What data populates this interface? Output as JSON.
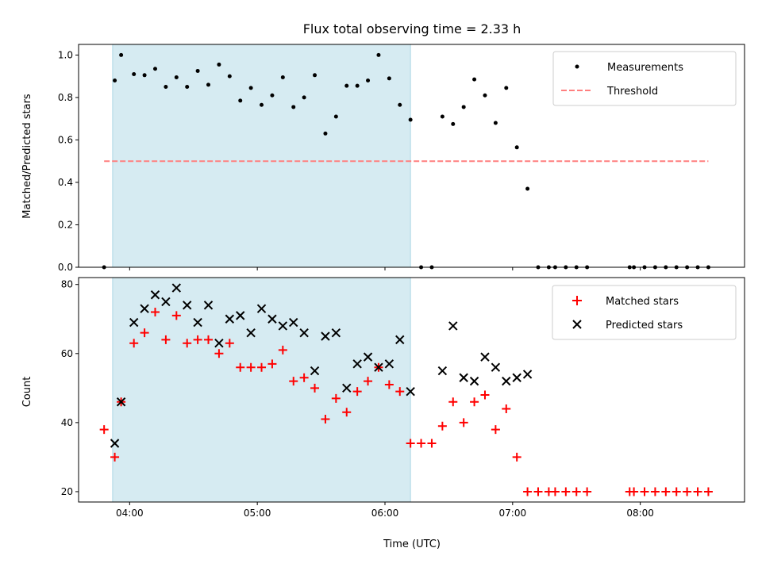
{
  "chart_data": {
    "type": "scatter",
    "title": "Flux total observing time = 2.33 h",
    "xlabel": "Time (UTC)",
    "x_ticks": [
      "04:00",
      "05:00",
      "06:00",
      "07:00",
      "08:00"
    ],
    "x_range": [
      "03:36",
      "08:49"
    ],
    "shaded_interval": [
      "03:52",
      "06:12"
    ],
    "colors": {
      "shade": "#add8e6",
      "measurements": "#000000",
      "threshold": "#ff7f7f",
      "matched": "#ff0000",
      "predicted": "#000000"
    },
    "panels": [
      {
        "id": "ratio",
        "ylabel": "Matched/Predicted stars",
        "ylim": [
          0,
          1.05
        ],
        "y_ticks": [
          "0.0",
          "0.2",
          "0.4",
          "0.6",
          "0.8",
          "1.0"
        ],
        "legend_position": "upper right",
        "series": [
          {
            "name": "Measurements",
            "marker": "dot",
            "points": [
              [
                "03:48",
                0.0
              ],
              [
                "03:53",
                0.88
              ],
              [
                "03:56",
                1.0
              ],
              [
                "04:02",
                0.91
              ],
              [
                "04:07",
                0.905
              ],
              [
                "04:12",
                0.935
              ],
              [
                "04:17",
                0.85
              ],
              [
                "04:22",
                0.895
              ],
              [
                "04:27",
                0.85
              ],
              [
                "04:32",
                0.925
              ],
              [
                "04:37",
                0.86
              ],
              [
                "04:42",
                0.955
              ],
              [
                "04:47",
                0.9
              ],
              [
                "04:52",
                0.785
              ],
              [
                "04:57",
                0.845
              ],
              [
                "05:02",
                0.765
              ],
              [
                "05:07",
                0.81
              ],
              [
                "05:12",
                0.895
              ],
              [
                "05:17",
                0.755
              ],
              [
                "05:22",
                0.8
              ],
              [
                "05:27",
                0.905
              ],
              [
                "05:32",
                0.63
              ],
              [
                "05:37",
                0.71
              ],
              [
                "05:42",
                0.855
              ],
              [
                "05:47",
                0.855
              ],
              [
                "05:52",
                0.88
              ],
              [
                "05:57",
                1.0
              ],
              [
                "06:02",
                0.89
              ],
              [
                "06:07",
                0.765
              ],
              [
                "06:12",
                0.695
              ],
              [
                "06:17",
                0.0
              ],
              [
                "06:22",
                0.0
              ],
              [
                "06:27",
                0.71
              ],
              [
                "06:32",
                0.675
              ],
              [
                "06:37",
                0.755
              ],
              [
                "06:42",
                0.885
              ],
              [
                "06:47",
                0.81
              ],
              [
                "06:52",
                0.68
              ],
              [
                "06:57",
                0.845
              ],
              [
                "07:02",
                0.565
              ],
              [
                "07:07",
                0.37
              ],
              [
                "07:12",
                0.0
              ],
              [
                "07:17",
                0.0
              ],
              [
                "07:20",
                0.0
              ],
              [
                "07:25",
                0.0
              ],
              [
                "07:30",
                0.0
              ],
              [
                "07:35",
                0.0
              ],
              [
                "07:55",
                0.0
              ],
              [
                "07:57",
                0.0
              ],
              [
                "08:02",
                0.0
              ],
              [
                "08:07",
                0.0
              ],
              [
                "08:12",
                0.0
              ],
              [
                "08:17",
                0.0
              ],
              [
                "08:22",
                0.0
              ],
              [
                "08:27",
                0.0
              ],
              [
                "08:32",
                0.0
              ]
            ]
          },
          {
            "name": "Threshold",
            "style": "dashed",
            "x": [
              "03:48",
              "08:32"
            ],
            "y": 0.5
          }
        ]
      },
      {
        "id": "count",
        "ylabel": "Count",
        "ylim": [
          17,
          82
        ],
        "y_ticks": [
          "20",
          "40",
          "60",
          "80"
        ],
        "legend_position": "upper right",
        "series": [
          {
            "name": "Matched stars",
            "marker": "plus",
            "points": [
              [
                "03:48",
                38
              ],
              [
                "03:53",
                30
              ],
              [
                "03:56",
                46
              ],
              [
                "04:02",
                63
              ],
              [
                "04:07",
                66
              ],
              [
                "04:12",
                72
              ],
              [
                "04:17",
                64
              ],
              [
                "04:22",
                71
              ],
              [
                "04:27",
                63
              ],
              [
                "04:32",
                64
              ],
              [
                "04:37",
                64
              ],
              [
                "04:42",
                60
              ],
              [
                "04:47",
                63
              ],
              [
                "04:52",
                56
              ],
              [
                "04:57",
                56
              ],
              [
                "05:02",
                56
              ],
              [
                "05:07",
                57
              ],
              [
                "05:12",
                61
              ],
              [
                "05:17",
                52
              ],
              [
                "05:22",
                53
              ],
              [
                "05:27",
                50
              ],
              [
                "05:32",
                41
              ],
              [
                "05:37",
                47
              ],
              [
                "05:42",
                43
              ],
              [
                "05:47",
                49
              ],
              [
                "05:52",
                52
              ],
              [
                "05:57",
                56
              ],
              [
                "06:02",
                51
              ],
              [
                "06:07",
                49
              ],
              [
                "06:12",
                34
              ],
              [
                "06:17",
                34
              ],
              [
                "06:22",
                34
              ],
              [
                "06:27",
                39
              ],
              [
                "06:32",
                46
              ],
              [
                "06:37",
                40
              ],
              [
                "06:42",
                46
              ],
              [
                "06:47",
                48
              ],
              [
                "06:52",
                38
              ],
              [
                "06:57",
                44
              ],
              [
                "07:02",
                30
              ],
              [
                "07:07",
                20
              ],
              [
                "07:12",
                20
              ],
              [
                "07:17",
                20
              ],
              [
                "07:20",
                20
              ],
              [
                "07:25",
                20
              ],
              [
                "07:30",
                20
              ],
              [
                "07:35",
                20
              ],
              [
                "07:55",
                20
              ],
              [
                "07:57",
                20
              ],
              [
                "08:02",
                20
              ],
              [
                "08:07",
                20
              ],
              [
                "08:12",
                20
              ],
              [
                "08:17",
                20
              ],
              [
                "08:22",
                20
              ],
              [
                "08:27",
                20
              ],
              [
                "08:32",
                20
              ]
            ]
          },
          {
            "name": "Predicted stars",
            "marker": "x",
            "points": [
              [
                "03:53",
                34
              ],
              [
                "03:56",
                46
              ],
              [
                "04:02",
                69
              ],
              [
                "04:07",
                73
              ],
              [
                "04:12",
                77
              ],
              [
                "04:17",
                75
              ],
              [
                "04:22",
                79
              ],
              [
                "04:27",
                74
              ],
              [
                "04:32",
                69
              ],
              [
                "04:37",
                74
              ],
              [
                "04:42",
                63
              ],
              [
                "04:47",
                70
              ],
              [
                "04:52",
                71
              ],
              [
                "04:57",
                66
              ],
              [
                "05:02",
                73
              ],
              [
                "05:07",
                70
              ],
              [
                "05:12",
                68
              ],
              [
                "05:17",
                69
              ],
              [
                "05:22",
                66
              ],
              [
                "05:27",
                55
              ],
              [
                "05:32",
                65
              ],
              [
                "05:37",
                66
              ],
              [
                "05:42",
                50
              ],
              [
                "05:47",
                57
              ],
              [
                "05:52",
                59
              ],
              [
                "05:57",
                56
              ],
              [
                "06:02",
                57
              ],
              [
                "06:07",
                64
              ],
              [
                "06:12",
                49
              ],
              [
                "06:27",
                55
              ],
              [
                "06:32",
                68
              ],
              [
                "06:37",
                53
              ],
              [
                "06:42",
                52
              ],
              [
                "06:47",
                59
              ],
              [
                "06:52",
                56
              ],
              [
                "06:57",
                52
              ],
              [
                "07:02",
                53
              ],
              [
                "07:07",
                54
              ]
            ]
          }
        ]
      }
    ]
  }
}
